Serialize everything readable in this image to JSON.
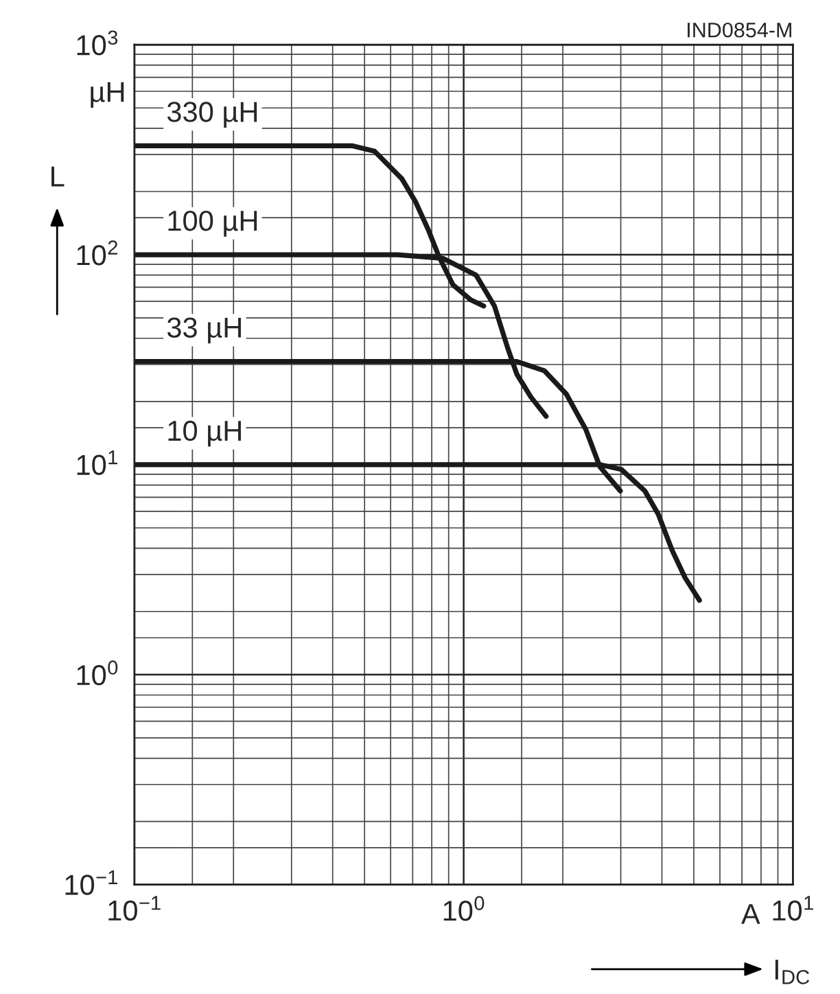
{
  "chart_data": {
    "type": "line",
    "xlabel": "I$_{DC}$",
    "ylabel": "L",
    "annotations": [
      "IND0854-M",
      "µH",
      "A"
    ],
    "log": "xy",
    "grid": true,
    "legend": false,
    "xlim": [
      0.1,
      10
    ],
    "xticks": [
      {
        "value": 0.1,
        "label": "10$^{−1}$"
      },
      {
        "value": 1,
        "label": "10$^{0}$"
      },
      {
        "value": 10,
        "label": "10$^{1}$"
      }
    ],
    "ylim": [
      0.1,
      1000
    ],
    "yticks": [
      {
        "value": 0.1,
        "label": "10$^{−1}$"
      },
      {
        "value": 1,
        "label": "10$^{0}$"
      },
      {
        "value": 10,
        "label": "10$^{1}$"
      },
      {
        "value": 100,
        "label": "10$^{2}$"
      },
      {
        "value": 1000,
        "label": "10$^{3}$"
      }
    ],
    "series": [
      {
        "name": "330 µH",
        "color": "#1a1a1a",
        "x": [
          0.1,
          0.46,
          0.536,
          0.649,
          0.715,
          0.78,
          0.841,
          0.927,
          1.05,
          1.15
        ],
        "values": [
          330,
          330,
          311,
          230,
          178,
          132,
          98,
          72,
          61,
          57
        ]
      },
      {
        "name": "100 µH",
        "color": "#1a1a1a",
        "x": [
          0.1,
          0.63,
          0.866,
          1.09,
          1.24,
          1.36,
          1.45,
          1.6,
          1.78
        ],
        "values": [
          100,
          100,
          96,
          80,
          57,
          36,
          27,
          21,
          17
        ]
      },
      {
        "name": "33 µH",
        "color": "#1a1a1a",
        "x": [
          0.1,
          1.45,
          1.76,
          2.05,
          2.35,
          2.59,
          2.99
        ],
        "values": [
          31,
          31,
          28,
          21.7,
          14.7,
          9.8,
          7.5
        ]
      },
      {
        "name": "10 µH",
        "color": "#1a1a1a",
        "x": [
          0.1,
          2.6,
          3.01,
          3.55,
          3.9,
          4.3,
          4.7,
          5.2
        ],
        "values": [
          10,
          10,
          9.5,
          7.5,
          5.8,
          3.9,
          2.9,
          2.26
        ]
      }
    ]
  }
}
